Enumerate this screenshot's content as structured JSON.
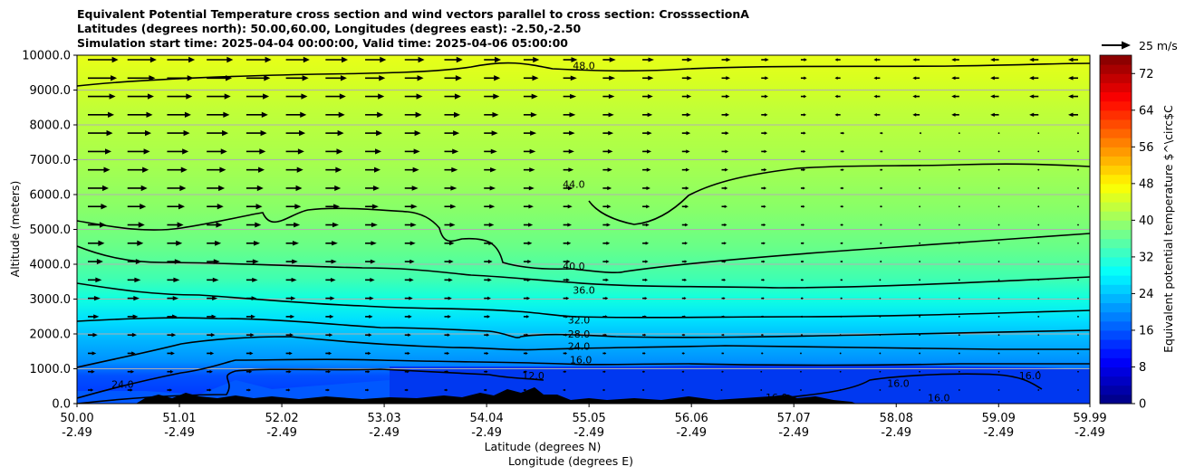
{
  "title_lines": [
    "Equivalent Potential Temperature cross section and wind vectors parallel to cross section: CrosssectionA",
    "Latitudes (degrees north): 50.00,60.00, Longitudes (degrees east): -2.50,-2.50",
    "Simulation start time: 2025-04-04 00:00:00, Valid time: 2025-04-06 05:00:00"
  ],
  "quiver_key": "25 m/s",
  "chart_data": {
    "type": "contourf",
    "ylabel": "Altitude (meters)",
    "xlabel": "Latitude (degrees N)",
    "xlabel2": "Longitude (degrees E)",
    "xlim": [
      50.0,
      59.99
    ],
    "ylim": [
      0,
      10000
    ],
    "x_ticks": [
      {
        "lat": "50.00",
        "lon": "-2.49",
        "value": 50.0
      },
      {
        "lat": "51.01",
        "lon": "-2.49",
        "value": 51.01
      },
      {
        "lat": "52.02",
        "lon": "-2.49",
        "value": 52.02
      },
      {
        "lat": "53.03",
        "lon": "-2.49",
        "value": 53.03
      },
      {
        "lat": "54.04",
        "lon": "-2.49",
        "value": 54.04
      },
      {
        "lat": "55.05",
        "lon": "-2.49",
        "value": 55.05
      },
      {
        "lat": "56.06",
        "lon": "-2.49",
        "value": 56.06
      },
      {
        "lat": "57.07",
        "lon": "-2.49",
        "value": 57.07
      },
      {
        "lat": "58.08",
        "lon": "-2.49",
        "value": 58.08
      },
      {
        "lat": "59.09",
        "lon": "-2.49",
        "value": 59.09
      },
      {
        "lat": "59.99",
        "lon": "-2.49",
        "value": 59.99
      }
    ],
    "y_ticks": [
      "0.0",
      "1000.0",
      "2000.0",
      "3000.0",
      "4000.0",
      "5000.0",
      "6000.0",
      "7000.0",
      "8000.0",
      "9000.0",
      "10000.0"
    ],
    "colorbar": {
      "label": "Equivalent potential temperature $^\\circ$C",
      "min": 0,
      "max": 76,
      "ticks": [
        "0",
        "8",
        "16",
        "24",
        "32",
        "40",
        "48",
        "56",
        "64",
        "72"
      ]
    },
    "contour_labels": [
      {
        "text": "48.0",
        "x": 55.0,
        "y": 9600
      },
      {
        "text": "44.0",
        "x": 54.9,
        "y": 6200
      },
      {
        "text": "40.0",
        "x": 54.9,
        "y": 3850
      },
      {
        "text": "36.0",
        "x": 55.0,
        "y": 3150
      },
      {
        "text": "32.0",
        "x": 54.95,
        "y": 2300
      },
      {
        "text": "28.0",
        "x": 54.95,
        "y": 1900
      },
      {
        "text": "24.0",
        "x": 54.95,
        "y": 1550
      },
      {
        "text": "16.0",
        "x": 54.97,
        "y": 1150
      },
      {
        "text": "12.0",
        "x": 54.5,
        "y": 700
      },
      {
        "text": "16.0",
        "x": 56.9,
        "y": 80
      },
      {
        "text": "16.0",
        "x": 58.1,
        "y": 480
      },
      {
        "text": "16.0",
        "x": 58.5,
        "y": 60
      },
      {
        "text": "16.0",
        "x": 59.4,
        "y": 700
      },
      {
        "text": "24.0",
        "x": 50.45,
        "y": 450
      }
    ],
    "contour_levels": [
      48,
      44,
      40,
      36,
      32,
      28,
      24,
      16,
      12
    ],
    "grid": true
  }
}
